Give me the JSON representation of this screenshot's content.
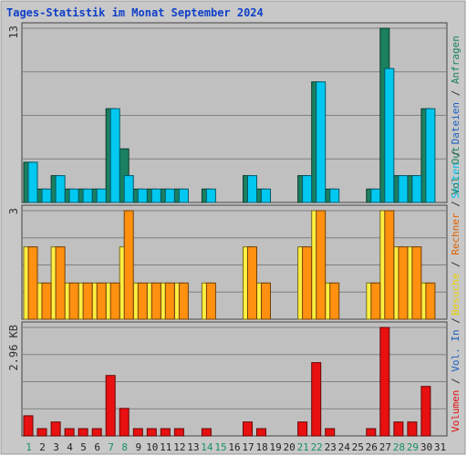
{
  "chart_data": {
    "type": "bar",
    "title": "Tages-Statistik im Monat September 2024",
    "x": [
      1,
      2,
      3,
      4,
      5,
      6,
      7,
      8,
      9,
      10,
      11,
      12,
      13,
      14,
      15,
      16,
      17,
      18,
      19,
      20,
      21,
      22,
      23,
      24,
      25,
      26,
      27,
      28,
      29,
      30,
      31
    ],
    "weekend_days": [
      1,
      7,
      8,
      14,
      15,
      21,
      22,
      28,
      29
    ],
    "panels": [
      {
        "id": "top",
        "max_label": "13",
        "ylim": [
          0,
          13
        ],
        "right_label": [
          {
            "text": "Seiten",
            "color": "#00c0f0"
          },
          {
            "text": " / ",
            "color": "#333333"
          },
          {
            "text": "Dateien",
            "color": "#1a60c0"
          },
          {
            "text": " / ",
            "color": "#333333"
          },
          {
            "text": "Anfragen",
            "color": "#1a8060"
          }
        ],
        "series": [
          {
            "name": "Anfragen",
            "color": "#1a8060",
            "values": [
              3,
              1,
              2,
              1,
              1,
              1,
              7,
              4,
              1,
              1,
              1,
              1,
              0,
              1,
              0,
              0,
              2,
              1,
              0,
              0,
              2,
              9,
              1,
              0,
              0,
              1,
              13,
              2,
              2,
              7,
              0
            ]
          },
          {
            "name": "Seiten",
            "color": "#00c8f0",
            "values": [
              3,
              1,
              2,
              1,
              1,
              1,
              7,
              2,
              1,
              1,
              1,
              1,
              0,
              1,
              0,
              0,
              2,
              1,
              0,
              0,
              2,
              9,
              1,
              0,
              0,
              1,
              10,
              2,
              2,
              7,
              0
            ]
          }
        ]
      },
      {
        "id": "middle",
        "max_label": "3",
        "ylim": [
          0,
          3
        ],
        "right_label": [
          {
            "text": "Besuche",
            "color": "#e8d000"
          },
          {
            "text": " / ",
            "color": "#333333"
          },
          {
            "text": "Rechner",
            "color": "#e06000"
          },
          {
            "text": " / ",
            "color": "#333333"
          },
          {
            "text": "Vol. Out",
            "color": "#1a8060"
          }
        ],
        "series": [
          {
            "name": "Besuche",
            "color": "#ffef40",
            "values": [
              2,
              1,
              2,
              1,
              1,
              1,
              1,
              2,
              1,
              1,
              1,
              1,
              0,
              1,
              0,
              0,
              2,
              1,
              0,
              0,
              2,
              3,
              1,
              0,
              0,
              1,
              3,
              2,
              2,
              1,
              0
            ]
          },
          {
            "name": "Rechner",
            "color": "#ff9010",
            "values": [
              2,
              1,
              2,
              1,
              1,
              1,
              1,
              3,
              1,
              1,
              1,
              1,
              0,
              1,
              0,
              0,
              2,
              1,
              0,
              0,
              2,
              3,
              1,
              0,
              0,
              1,
              3,
              2,
              2,
              1,
              0
            ]
          }
        ]
      },
      {
        "id": "bottom",
        "max_label": "2.96 KB",
        "ylim": [
          0,
          2.96
        ],
        "right_label": [
          {
            "text": "Volumen",
            "color": "#e01010"
          },
          {
            "text": " / ",
            "color": "#333333"
          },
          {
            "text": "Vol. In",
            "color": "#1a60c0"
          },
          {
            "text": " / ",
            "color": "#333333"
          }
        ],
        "series": [
          {
            "name": "Volumen",
            "color": "#e81010",
            "values": [
              0.55,
              0.2,
              0.38,
              0.2,
              0.2,
              0.2,
              1.65,
              0.75,
              0.2,
              0.2,
              0.2,
              0.2,
              0,
              0.2,
              0,
              0,
              0.38,
              0.2,
              0,
              0,
              0.38,
              2.0,
              0.2,
              0,
              0,
              0.2,
              2.96,
              0.38,
              0.38,
              1.35,
              0
            ]
          }
        ]
      }
    ]
  }
}
